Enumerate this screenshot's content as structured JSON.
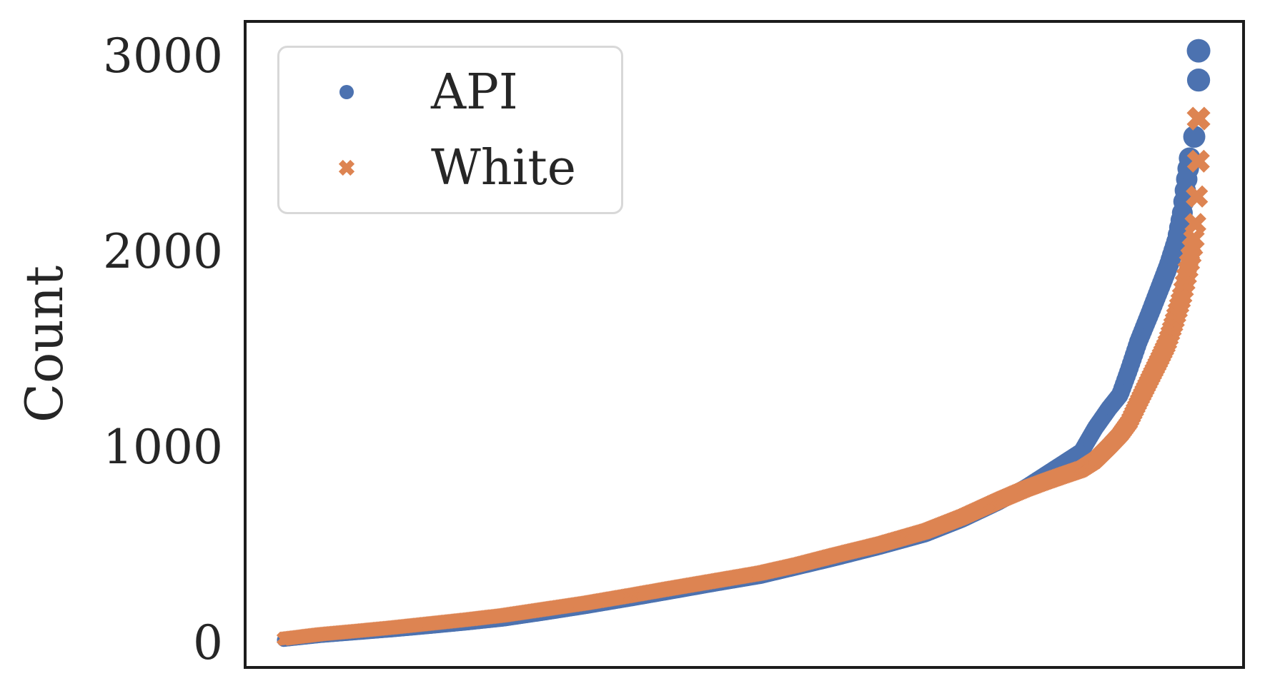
{
  "figure": {
    "background": "#ffffff",
    "axes_color": "#1c1c1c",
    "text_color": "#262626"
  },
  "chart_data": {
    "type": "scatter",
    "title": "",
    "xlabel": "",
    "ylabel": "Count",
    "x_axis_note": "items sorted ascending by count; no x tick labels shown",
    "yticks": [
      0,
      1000,
      2000,
      3000
    ],
    "ytick_labels": [
      "0",
      "1000",
      "2000",
      "3000"
    ],
    "ylim": [
      -125,
      3180
    ],
    "grid": false,
    "legend": {
      "position": "upper left",
      "entries": [
        "API",
        "White"
      ]
    },
    "series": [
      {
        "name": "API",
        "marker": "circle",
        "color": "#4C72B0",
        "approx_n_points": 900,
        "curve_samples": [
          [
            0,
            15
          ],
          [
            0.04,
            35
          ],
          [
            0.08,
            50
          ],
          [
            0.12,
            65
          ],
          [
            0.16,
            82
          ],
          [
            0.2,
            100
          ],
          [
            0.24,
            120
          ],
          [
            0.28,
            148
          ],
          [
            0.33,
            185
          ],
          [
            0.38,
            225
          ],
          [
            0.42,
            258
          ],
          [
            0.47,
            300
          ],
          [
            0.52,
            340
          ],
          [
            0.56,
            385
          ],
          [
            0.6,
            430
          ],
          [
            0.65,
            490
          ],
          [
            0.7,
            555
          ],
          [
            0.74,
            630
          ],
          [
            0.78,
            720
          ],
          [
            0.81,
            800
          ],
          [
            0.83,
            860
          ],
          [
            0.85,
            920
          ],
          [
            0.87,
            980
          ],
          [
            0.885,
            1100
          ],
          [
            0.9,
            1200
          ],
          [
            0.912,
            1270
          ],
          [
            0.922,
            1400
          ],
          [
            0.932,
            1540
          ],
          [
            0.945,
            1690
          ],
          [
            0.955,
            1810
          ],
          [
            0.965,
            1930
          ],
          [
            0.974,
            2060
          ],
          [
            0.98,
            2200
          ],
          [
            0.985,
            2380
          ],
          [
            0.988,
            2480
          ]
        ],
        "top_outliers": [
          [
            0.993,
            2590
          ],
          [
            0.9977,
            2880
          ],
          [
            0.9977,
            3030
          ]
        ]
      },
      {
        "name": "White",
        "marker": "x",
        "color": "#DD8452",
        "approx_n_points": 900,
        "curve_samples": [
          [
            0,
            22
          ],
          [
            0.04,
            45
          ],
          [
            0.08,
            62
          ],
          [
            0.12,
            80
          ],
          [
            0.16,
            100
          ],
          [
            0.2,
            120
          ],
          [
            0.24,
            142
          ],
          [
            0.28,
            170
          ],
          [
            0.33,
            205
          ],
          [
            0.38,
            245
          ],
          [
            0.42,
            278
          ],
          [
            0.47,
            318
          ],
          [
            0.52,
            358
          ],
          [
            0.56,
            400
          ],
          [
            0.6,
            448
          ],
          [
            0.65,
            505
          ],
          [
            0.7,
            572
          ],
          [
            0.74,
            645
          ],
          [
            0.78,
            730
          ],
          [
            0.81,
            790
          ],
          [
            0.83,
            825
          ],
          [
            0.85,
            858
          ],
          [
            0.87,
            890
          ],
          [
            0.885,
            935
          ],
          [
            0.9,
            1005
          ],
          [
            0.912,
            1065
          ],
          [
            0.922,
            1130
          ],
          [
            0.932,
            1230
          ],
          [
            0.945,
            1355
          ],
          [
            0.955,
            1450
          ],
          [
            0.963,
            1530
          ],
          [
            0.972,
            1655
          ],
          [
            0.98,
            1780
          ],
          [
            0.986,
            1905
          ],
          [
            0.99,
            1995
          ],
          [
            0.9935,
            2090
          ],
          [
            0.9955,
            2230
          ],
          [
            0.9965,
            2370
          ],
          [
            0.9975,
            2465
          ]
        ],
        "top_outliers": [
          [
            0.9977,
            2683
          ]
        ]
      }
    ]
  }
}
